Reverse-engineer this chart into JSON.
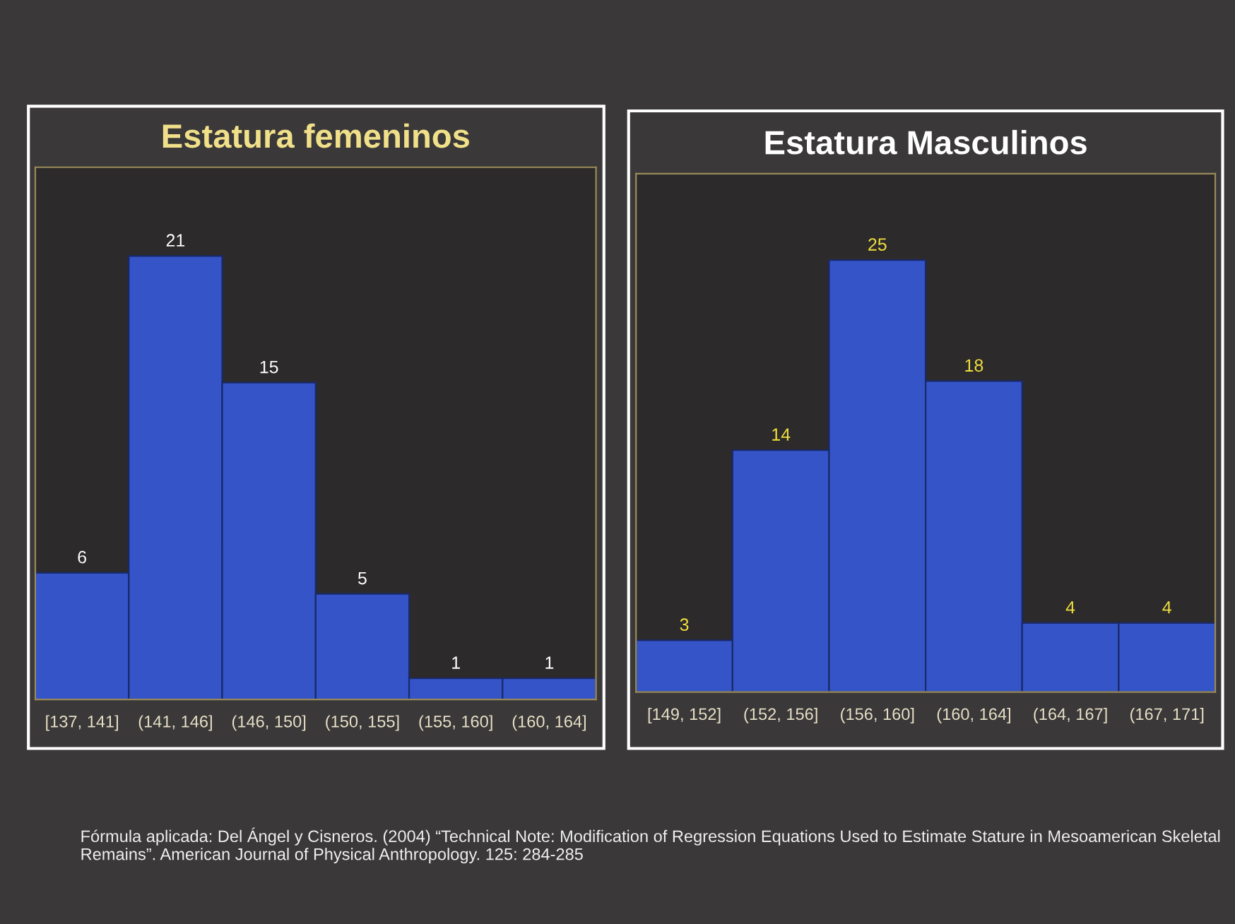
{
  "chart_data": [
    {
      "type": "bar",
      "title": "Estatura femeninos",
      "categories": [
        "[137, 141]",
        "(141, 146]",
        "(146, 150]",
        "(150, 155]",
        "(155, 160]",
        "(160, 164]"
      ],
      "values": [
        6,
        21,
        15,
        5,
        1,
        1
      ],
      "color": "#3454c8",
      "data_labels": true,
      "grid": false,
      "legend": false
    },
    {
      "type": "bar",
      "title": "Estatura Masculinos",
      "categories": [
        "[149, 152]",
        "(152, 156]",
        "(156, 160]",
        "(160, 164]",
        "(164, 167]",
        "(167, 171]"
      ],
      "values": [
        3,
        14,
        25,
        18,
        4,
        4
      ],
      "color": "#3454c8",
      "data_labels": true,
      "grid": false,
      "legend": false,
      "annotations": [
        "Fórmula aplicada: Del Ángel y Cisneros. (2004) “Technical Note: Modification of Regression Equations Used to Estimate Stature in Mesoamerican Skeletal Remains”. American Journal of Physical Anthropology. 125: 284-285"
      ]
    }
  ]
}
